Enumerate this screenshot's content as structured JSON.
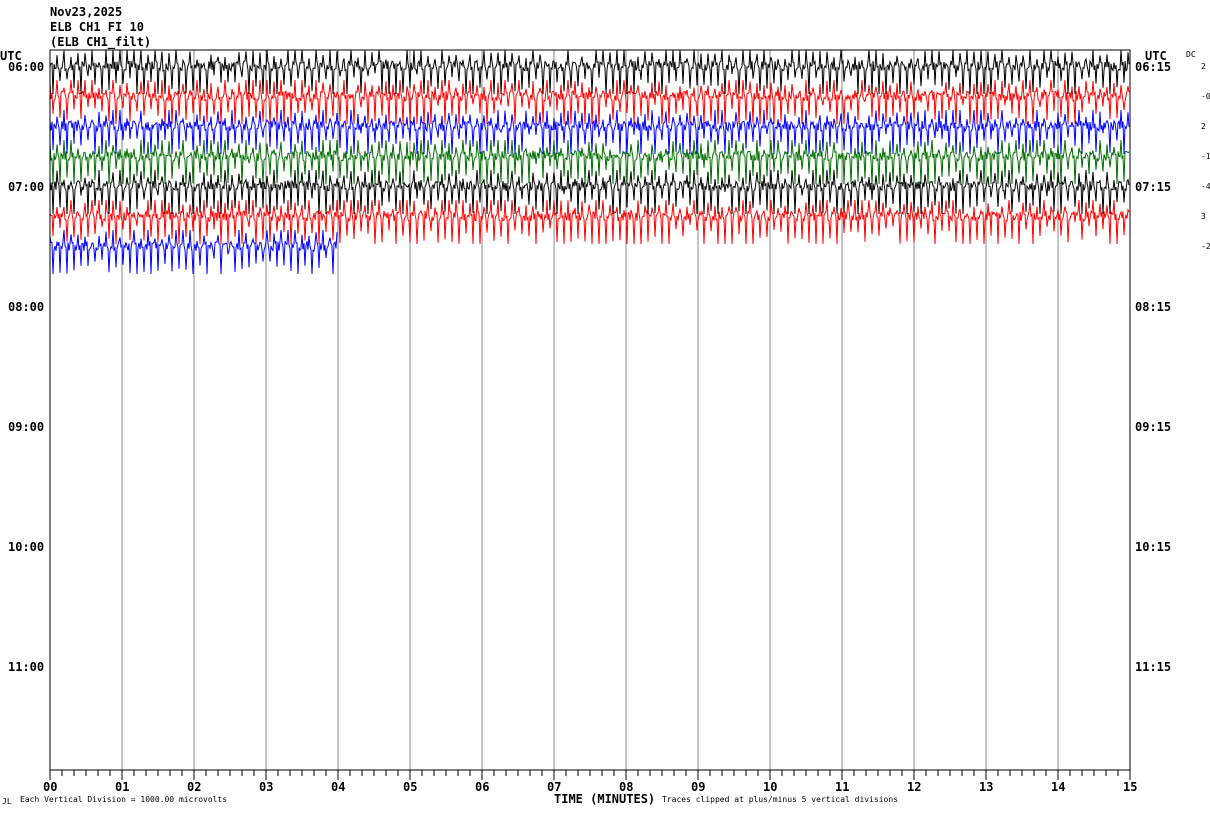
{
  "header": {
    "date": "Nov23,2025",
    "station": "ELB CH1 FI 10",
    "channel": "(ELB CH1_filt)"
  },
  "left_axis_label": "UTC",
  "right_axis_label": "UTC",
  "dc_label": "DC",
  "footer": {
    "corner": "JL",
    "scale": "Each Vertical Division = 1000.00 microvolts",
    "xlabel": "TIME (MINUTES)",
    "clip": "Traces clipped at plus/minus 5 vertical divisions"
  },
  "colors": [
    "#000000",
    "#ff0000",
    "#0000ff",
    "#007000"
  ],
  "chart_data": {
    "type": "line",
    "title": "ELB CH1 FI 10",
    "xlabel": "TIME (MINUTES)",
    "xlim": [
      0,
      15
    ],
    "x_ticks": [
      "00",
      "01",
      "02",
      "03",
      "04",
      "05",
      "06",
      "07",
      "08",
      "09",
      "10",
      "11",
      "12",
      "13",
      "14",
      "15"
    ],
    "left_labels": [
      "06:00",
      "07:00",
      "08:00",
      "09:00",
      "10:00",
      "11:00"
    ],
    "right_labels": [
      "06:15",
      "07:15",
      "08:15",
      "09:15",
      "10:15",
      "11:15"
    ],
    "rows_total": 24,
    "rows": [
      {
        "start": "06:00",
        "dc": "2",
        "minutes": 15
      },
      {
        "start": "06:15",
        "dc": "-0",
        "minutes": 15
      },
      {
        "start": "06:30",
        "dc": "2",
        "minutes": 15
      },
      {
        "start": "06:45",
        "dc": "-1",
        "minutes": 15
      },
      {
        "start": "07:00",
        "dc": "-4",
        "minutes": 15
      },
      {
        "start": "07:15",
        "dc": "3",
        "minutes": 15
      },
      {
        "start": "07:30",
        "dc": "-2",
        "minutes": 4
      }
    ]
  }
}
